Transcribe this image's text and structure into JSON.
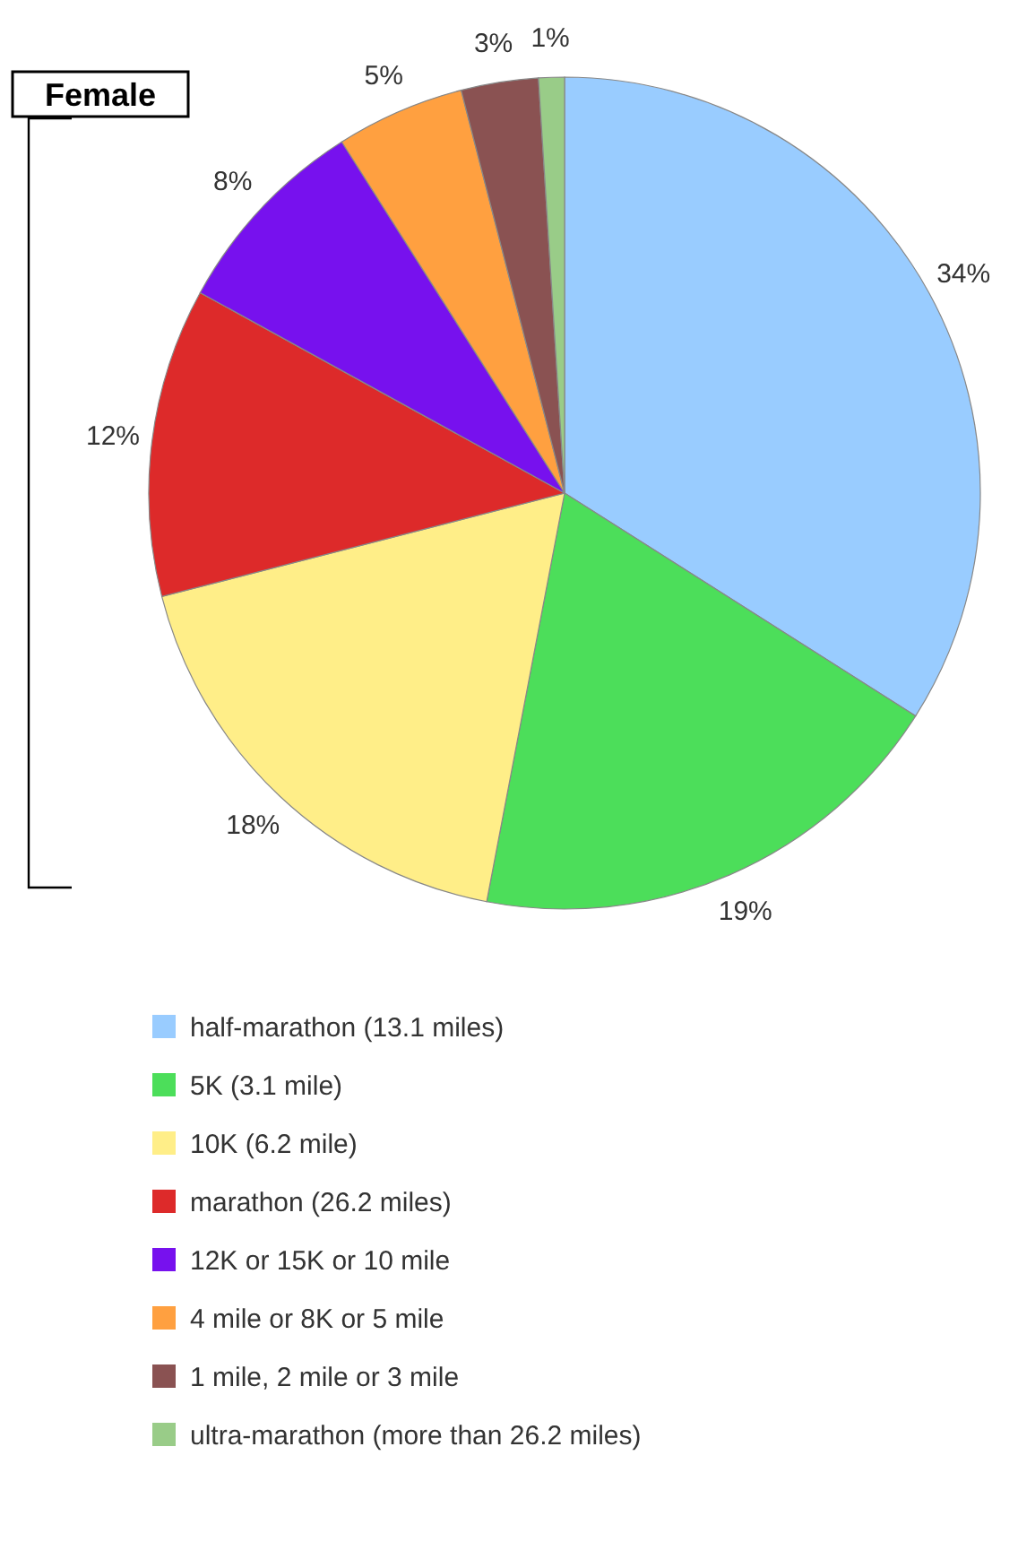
{
  "chart_data": {
    "type": "pie",
    "title": "Female",
    "categories": [
      "half-marathon (13.1 miles)",
      "5K (3.1 mile)",
      "10K (6.2 mile)",
      "marathon (26.2 miles)",
      "12K or 15K or 10 mile",
      "4 mile or 8K or 5 mile",
      "1 mile, 2 mile or 3 mile",
      "ultra-marathon (more than 26.2 miles)"
    ],
    "values": [
      34,
      19,
      18,
      12,
      8,
      5,
      3,
      1
    ],
    "colors": [
      "#99ccff",
      "#4cde5a",
      "#ffee88",
      "#dd2a2a",
      "#7711ee",
      "#ffa040",
      "#8a5252",
      "#99cc88"
    ],
    "value_labels": [
      "34%",
      "19%",
      "18%",
      "12%",
      "8%",
      "5%",
      "3%",
      "1%"
    ],
    "legend": "bottom"
  }
}
